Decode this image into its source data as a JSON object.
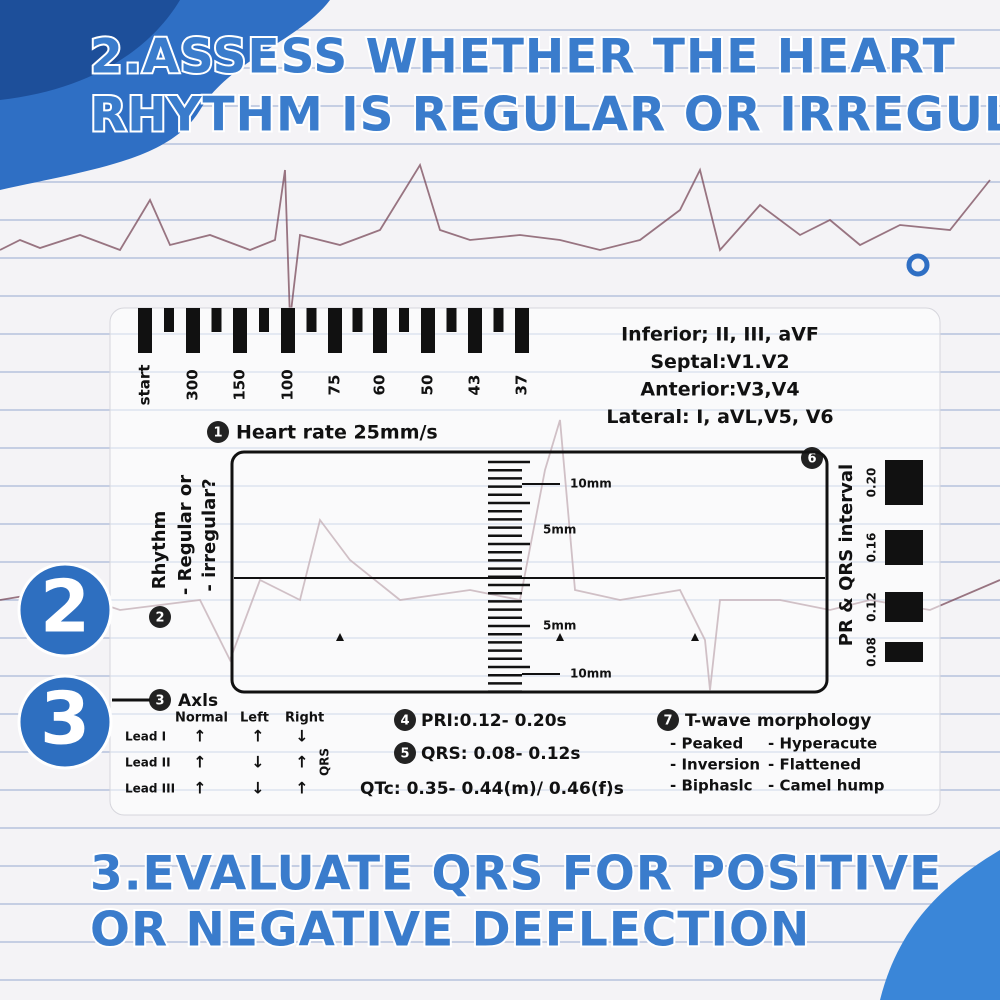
{
  "headline": [
    "2.ASSESS WHETHER THE HEART",
    "RHYTHM IS REGULAR OR IRREGULAR"
  ],
  "footer": [
    "3.EVALUATE QRS FOR POSITIVE",
    "OR NEGATIVE DEFLECTION"
  ],
  "badges": [
    "2",
    "3"
  ],
  "card": {
    "rate_labels": [
      "start",
      "300",
      "150",
      "100",
      "75",
      "60",
      "50",
      "43",
      "37"
    ],
    "lead_regions": [
      "Inferior; II, III, aVF",
      "Septal:V1.V2",
      "Anterior:V3,V4",
      "Lateral: I, aVL,V5, V6"
    ],
    "heart_rate": {
      "number": "1",
      "label": "Heart rate 25mm/s"
    },
    "rhythm": {
      "number": "2",
      "label": "Rhythm",
      "lines": [
        "- Regular or",
        "- irregular?"
      ]
    },
    "box_number": "6",
    "scale_labels": [
      "10mm",
      "5mm",
      "5mm",
      "10mm"
    ],
    "interval": {
      "label": "PR & QRS interval",
      "values": [
        "0.20",
        "0.16",
        "0.12",
        "0.08"
      ]
    },
    "axis": {
      "number": "3",
      "label": "Axls",
      "columns": [
        "Normal",
        "Left",
        "Right"
      ],
      "rows": [
        "Lead I",
        "Lead II",
        "Lead III"
      ],
      "side_label": "QRS",
      "arrows": [
        [
          "↑",
          "↑",
          "↓"
        ],
        [
          "↑",
          "↓",
          "↑"
        ],
        [
          "↑",
          "↓",
          "↑"
        ]
      ]
    },
    "pri": {
      "number": "4",
      "label": "PRI:0.12- 0.20s"
    },
    "qrs": {
      "number": "5",
      "label": "QRS: 0.08- 0.12s"
    },
    "qtc": "QTc: 0.35- 0.44(m)/ 0.46(f)s",
    "twave": {
      "number": "7",
      "label": "T-wave morphology",
      "items": [
        "- Peaked",
        "- Hyperacute",
        "- Inversion",
        "- Flattened",
        "- Biphaslc",
        "- Camel hump"
      ]
    }
  }
}
